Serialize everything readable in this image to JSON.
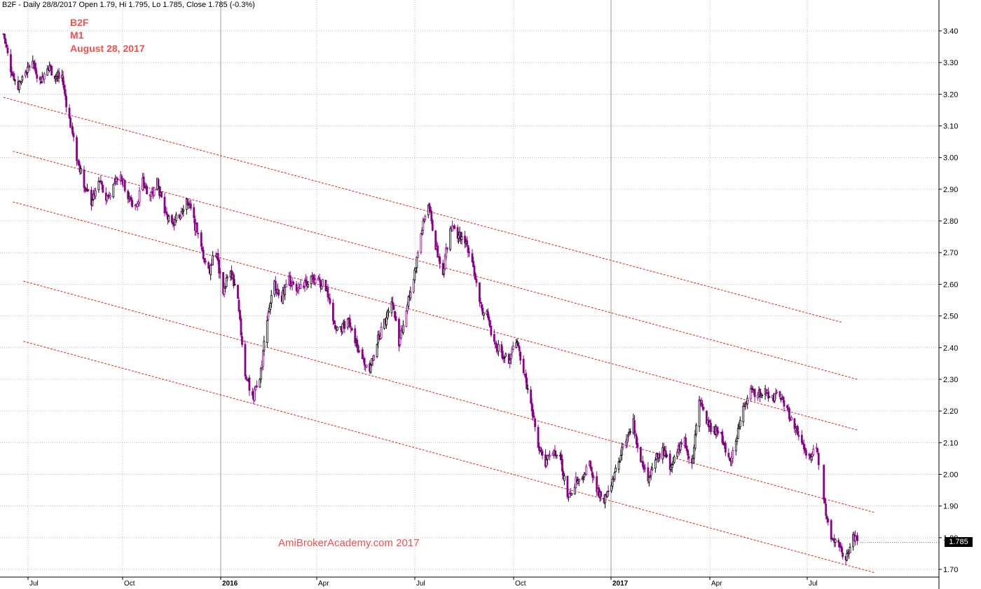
{
  "header": {
    "text": "B2F - Daily 28/8/2017 Open 1.79, Hi 1.795, Lo 1.785, Close 1.785 (-0.3%)"
  },
  "overlay": {
    "symbol": "B2F",
    "timeframe": "M1",
    "date": "August 28, 2017"
  },
  "watermark": "AmiBrokerAcademy.com  2017",
  "last_price_label": "1.785",
  "colors": {
    "background": "#ffffff",
    "grid": "#bdbdbd",
    "candle": "#8b008b",
    "candle_alt": "#000000",
    "channel": "#e02020",
    "text_accent": "#f05050"
  },
  "chart_data": {
    "type": "candlestick",
    "ylim": [
      1.67,
      3.45
    ],
    "yticks": [
      "3.40",
      "3.30",
      "3.20",
      "3.10",
      "3.00",
      "2.90",
      "2.80",
      "2.70",
      "2.60",
      "2.50",
      "2.40",
      "2.30",
      "2.20",
      "2.10",
      "2.00",
      "1.90",
      "1.80",
      "1.70"
    ],
    "xticks": [
      {
        "label": "Jul",
        "bold": false
      },
      {
        "label": "Oct",
        "bold": false
      },
      {
        "label": "2016",
        "bold": true
      },
      {
        "label": "Apr",
        "bold": false
      },
      {
        "label": "Jul",
        "bold": false
      },
      {
        "label": "Oct",
        "bold": false
      },
      {
        "label": "2017",
        "bold": true
      },
      {
        "label": "Apr",
        "bold": false
      },
      {
        "label": "Jul",
        "bold": false
      }
    ],
    "price_path": [
      [
        "2015-06-01",
        3.39
      ],
      [
        "2015-06-08",
        3.28
      ],
      [
        "2015-06-15",
        3.22
      ],
      [
        "2015-06-22",
        3.27
      ],
      [
        "2015-06-29",
        3.3
      ],
      [
        "2015-07-06",
        3.24
      ],
      [
        "2015-07-13",
        3.29
      ],
      [
        "2015-07-20",
        3.26
      ],
      [
        "2015-07-27",
        3.25
      ],
      [
        "2015-08-03",
        3.12
      ],
      [
        "2015-08-10",
        3.0
      ],
      [
        "2015-08-17",
        2.92
      ],
      [
        "2015-08-24",
        2.86
      ],
      [
        "2015-08-31",
        2.93
      ],
      [
        "2015-09-07",
        2.87
      ],
      [
        "2015-09-14",
        2.91
      ],
      [
        "2015-09-21",
        2.94
      ],
      [
        "2015-09-28",
        2.88
      ],
      [
        "2015-10-05",
        2.84
      ],
      [
        "2015-10-12",
        2.92
      ],
      [
        "2015-10-19",
        2.88
      ],
      [
        "2015-10-26",
        2.92
      ],
      [
        "2015-11-02",
        2.83
      ],
      [
        "2015-11-09",
        2.78
      ],
      [
        "2015-11-16",
        2.82
      ],
      [
        "2015-11-23",
        2.87
      ],
      [
        "2015-11-30",
        2.8
      ],
      [
        "2015-12-07",
        2.71
      ],
      [
        "2015-12-14",
        2.64
      ],
      [
        "2015-12-21",
        2.7
      ],
      [
        "2015-12-28",
        2.58
      ],
      [
        "2016-01-04",
        2.65
      ],
      [
        "2016-01-11",
        2.54
      ],
      [
        "2016-01-18",
        2.32
      ],
      [
        "2016-01-25",
        2.24
      ],
      [
        "2016-02-01",
        2.3
      ],
      [
        "2016-02-08",
        2.5
      ],
      [
        "2016-02-15",
        2.6
      ],
      [
        "2016-02-22",
        2.56
      ],
      [
        "2016-02-29",
        2.61
      ],
      [
        "2016-03-07",
        2.58
      ],
      [
        "2016-03-14",
        2.6
      ],
      [
        "2016-03-21",
        2.62
      ],
      [
        "2016-03-28",
        2.61
      ],
      [
        "2016-04-04",
        2.59
      ],
      [
        "2016-04-11",
        2.48
      ],
      [
        "2016-04-18",
        2.45
      ],
      [
        "2016-04-25",
        2.49
      ],
      [
        "2016-05-02",
        2.42
      ],
      [
        "2016-05-09",
        2.36
      ],
      [
        "2016-05-16",
        2.34
      ],
      [
        "2016-05-23",
        2.42
      ],
      [
        "2016-05-30",
        2.48
      ],
      [
        "2016-06-06",
        2.55
      ],
      [
        "2016-06-13",
        2.42
      ],
      [
        "2016-06-20",
        2.52
      ],
      [
        "2016-06-27",
        2.62
      ],
      [
        "2016-07-04",
        2.76
      ],
      [
        "2016-07-11",
        2.86
      ],
      [
        "2016-07-18",
        2.72
      ],
      [
        "2016-07-25",
        2.64
      ],
      [
        "2016-08-01",
        2.78
      ],
      [
        "2016-08-08",
        2.76
      ],
      [
        "2016-08-15",
        2.74
      ],
      [
        "2016-08-22",
        2.68
      ],
      [
        "2016-08-29",
        2.53
      ],
      [
        "2016-09-05",
        2.5
      ],
      [
        "2016-09-12",
        2.42
      ],
      [
        "2016-09-19",
        2.38
      ],
      [
        "2016-09-26",
        2.36
      ],
      [
        "2016-10-03",
        2.42
      ],
      [
        "2016-10-10",
        2.33
      ],
      [
        "2016-10-17",
        2.22
      ],
      [
        "2016-10-24",
        2.1
      ],
      [
        "2016-10-31",
        2.04
      ],
      [
        "2016-11-07",
        2.08
      ],
      [
        "2016-11-14",
        2.05
      ],
      [
        "2016-11-21",
        1.93
      ],
      [
        "2016-11-28",
        1.97
      ],
      [
        "2016-12-05",
        2.0
      ],
      [
        "2016-12-12",
        2.03
      ],
      [
        "2016-12-19",
        1.95
      ],
      [
        "2016-12-26",
        1.92
      ],
      [
        "2017-01-02",
        1.96
      ],
      [
        "2017-01-09",
        2.04
      ],
      [
        "2017-01-16",
        2.12
      ],
      [
        "2017-01-23",
        2.16
      ],
      [
        "2017-01-30",
        2.04
      ],
      [
        "2017-02-06",
        1.99
      ],
      [
        "2017-02-13",
        2.05
      ],
      [
        "2017-02-20",
        2.07
      ],
      [
        "2017-02-27",
        2.03
      ],
      [
        "2017-03-06",
        2.08
      ],
      [
        "2017-03-13",
        2.1
      ],
      [
        "2017-03-20",
        2.03
      ],
      [
        "2017-03-27",
        2.25
      ],
      [
        "2017-04-03",
        2.16
      ],
      [
        "2017-04-10",
        2.14
      ],
      [
        "2017-04-17",
        2.12
      ],
      [
        "2017-04-24",
        2.04
      ],
      [
        "2017-05-01",
        2.1
      ],
      [
        "2017-05-08",
        2.22
      ],
      [
        "2017-05-15",
        2.26
      ],
      [
        "2017-05-22",
        2.25
      ],
      [
        "2017-05-29",
        2.26
      ],
      [
        "2017-06-05",
        2.24
      ],
      [
        "2017-06-12",
        2.25
      ],
      [
        "2017-06-19",
        2.2
      ],
      [
        "2017-06-26",
        2.16
      ],
      [
        "2017-07-03",
        2.09
      ],
      [
        "2017-07-10",
        2.05
      ],
      [
        "2017-07-17",
        2.09
      ],
      [
        "2017-07-24",
        1.92
      ],
      [
        "2017-07-31",
        1.8
      ],
      [
        "2017-08-07",
        1.78
      ],
      [
        "2017-08-14",
        1.73
      ],
      [
        "2017-08-21",
        1.8
      ],
      [
        "2017-08-28",
        1.785
      ]
    ],
    "channel_lines": [
      {
        "x0": "2015-06-01",
        "y0": 3.19,
        "x1": "2017-08-10",
        "y1": 2.48
      },
      {
        "x0": "2015-06-10",
        "y0": 3.02,
        "x1": "2017-08-25",
        "y1": 2.3
      },
      {
        "x0": "2015-06-10",
        "y0": 2.86,
        "x1": "2017-08-25",
        "y1": 2.14
      },
      {
        "x0": "2015-06-20",
        "y0": 2.61,
        "x1": "2017-09-10",
        "y1": 1.88
      },
      {
        "x0": "2015-06-20",
        "y0": 2.42,
        "x1": "2017-09-10",
        "y1": 1.69
      }
    ]
  }
}
